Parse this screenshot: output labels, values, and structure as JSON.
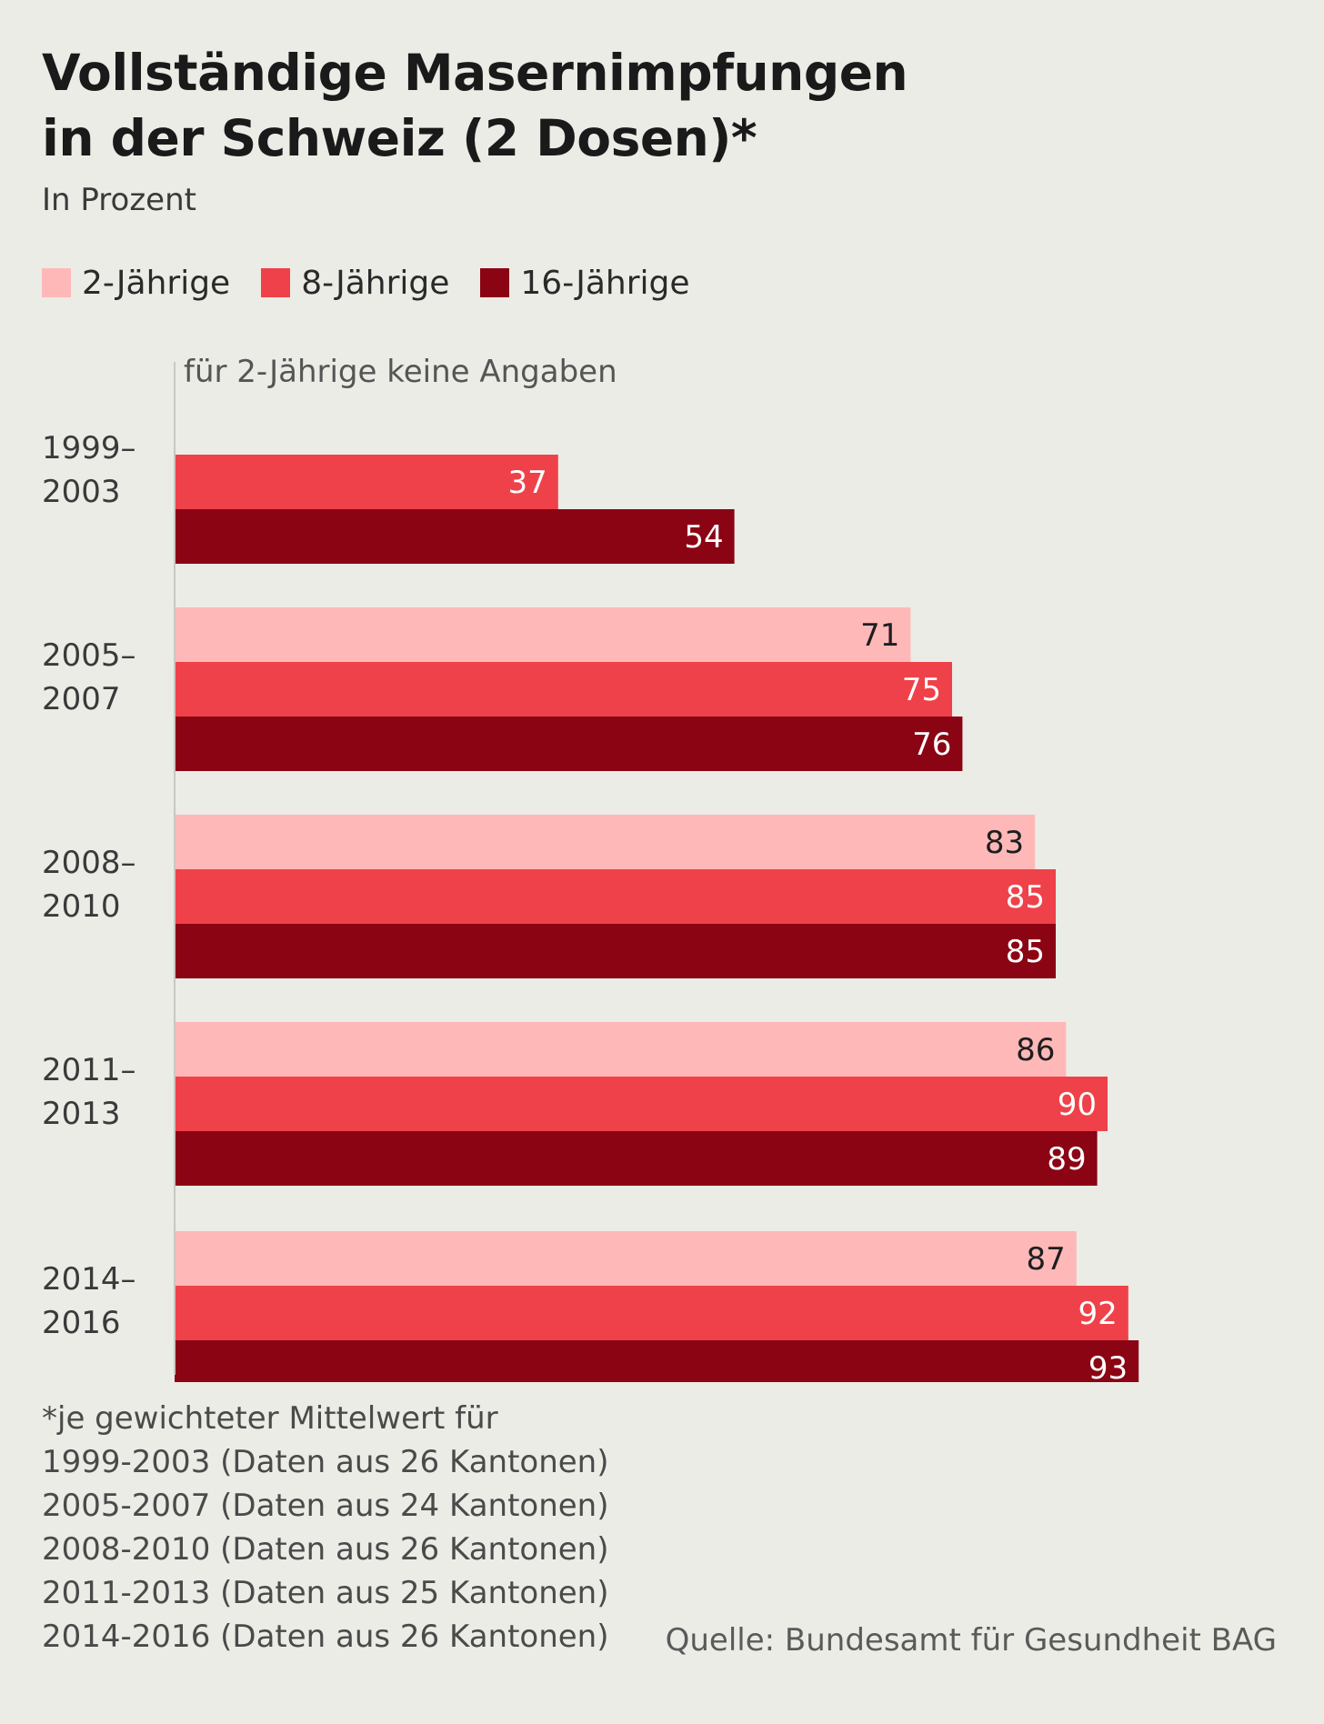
{
  "title": {
    "line1": "Vollständige Masernimpfungen",
    "line2": "in der Schweiz (2 Dosen)*"
  },
  "subtitle": "In Prozent",
  "colors": {
    "background": "#ecece7",
    "series_2": "#ffb8b8",
    "series_8": "#ef4149",
    "series_16": "#8b0414",
    "axis": "#c8c8c3"
  },
  "chart_data": {
    "type": "bar",
    "orientation": "horizontal",
    "xlim": [
      0,
      100
    ],
    "grid": false,
    "legend_position": "top-left",
    "categories": [
      "1999–\n2003",
      "2005–\n2007",
      "2008–\n2010",
      "2011–\n2013",
      "2014–\n2016"
    ],
    "series": [
      {
        "name": "2-Jährige",
        "values": [
          null,
          71,
          83,
          86,
          87
        ]
      },
      {
        "name": "8-Jährige",
        "values": [
          37,
          75,
          85,
          90,
          92
        ]
      },
      {
        "name": "16-Jährige",
        "values": [
          54,
          76,
          85,
          89,
          93
        ]
      }
    ],
    "annotation": "für 2-Jährige keine Angaben"
  },
  "footnote": [
    "*je gewichteter Mittelwert für",
    "1999-2003 (Daten aus 26 Kantonen)",
    "2005-2007 (Daten aus 24 Kantonen)",
    "2008-2010 (Daten aus 26 Kantonen)",
    "2011-2013 (Daten aus 25 Kantonen)",
    "2014-2016 (Daten aus 26 Kantonen)"
  ],
  "source": "Quelle:  Bundesamt für Gesundheit BAG"
}
